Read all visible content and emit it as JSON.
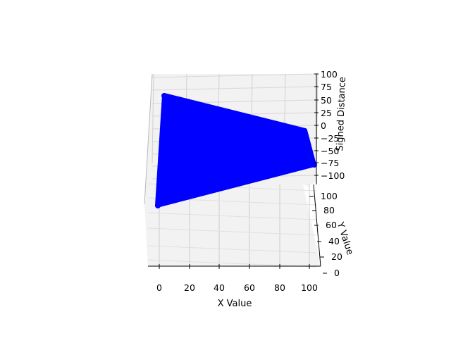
{
  "chart_data": {
    "type": "scatter",
    "projection": "3d",
    "xlabel": "X Value",
    "ylabel": "Y Value",
    "zlabel": "Signed Distance",
    "x_ticks": [
      "0",
      "20",
      "40",
      "60",
      "80",
      "100"
    ],
    "y_ticks": [
      "0",
      "20",
      "40",
      "60",
      "80",
      "100"
    ],
    "z_ticks": [
      "100",
      "75",
      "50",
      "25",
      "0",
      "−25",
      "−50",
      "−75",
      "−100"
    ],
    "xlim": [
      0,
      100
    ],
    "ylim": [
      0,
      100
    ],
    "zlim": [
      -100,
      100
    ],
    "grid": true,
    "point_color": "#0000ff",
    "surface_corners": [
      {
        "x": 0,
        "y": 0,
        "z": -100
      },
      {
        "x": 100,
        "y": 0,
        "z": -100
      },
      {
        "x": 100,
        "y": 100,
        "z": 0
      },
      {
        "x": 0,
        "y": 100,
        "z": 100
      }
    ]
  }
}
